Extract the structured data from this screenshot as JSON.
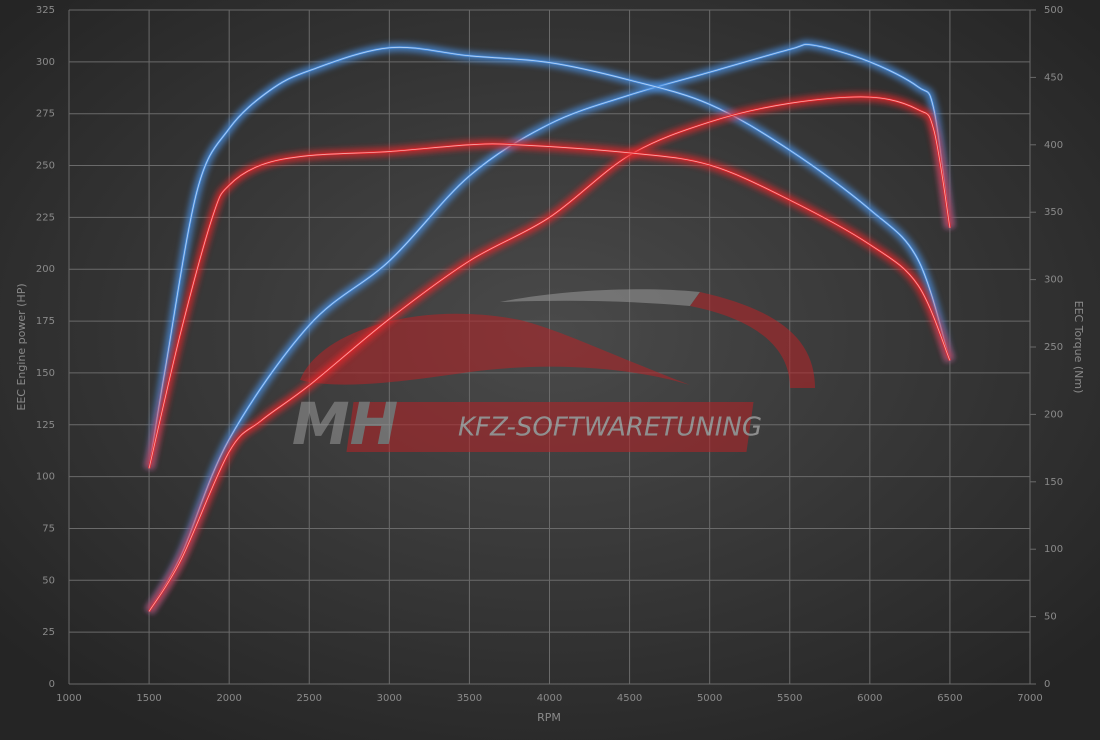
{
  "chart_data": {
    "type": "line",
    "xlabel": "RPM",
    "ylabel": "EEC Engine power (HP)",
    "y2label": "EEC Torque (Nm)",
    "watermark": {
      "logo": "MH",
      "text": "KFZ-SOFTWARETUNING"
    },
    "xlim": [
      1000,
      7000
    ],
    "xticks": [
      1000,
      1500,
      2000,
      2500,
      3000,
      3500,
      4000,
      4500,
      5000,
      5500,
      6000,
      6500,
      7000
    ],
    "ylim": [
      0,
      325
    ],
    "yticks": [
      0,
      25,
      50,
      75,
      100,
      125,
      150,
      175,
      200,
      225,
      250,
      275,
      300,
      325
    ],
    "y2lim": [
      0,
      500
    ],
    "y2ticks": [
      0,
      50,
      100,
      150,
      200,
      250,
      300,
      350,
      400,
      450,
      500
    ],
    "grid": true,
    "series": [
      {
        "color": "#4a90e2",
        "axis": "y",
        "x": [
          1500,
          1700,
          2000,
          2500,
          3000,
          3500,
          4000,
          4500,
          5000,
          5500,
          5650,
          6000,
          6300,
          6400,
          6500
        ],
        "values": [
          35,
          62,
          118,
          173,
          204,
          245,
          270,
          284,
          295,
          306,
          308,
          300,
          288,
          277,
          220
        ]
      },
      {
        "color": "#4a90e2",
        "axis": "y2",
        "x": [
          1500,
          1600,
          1800,
          2000,
          2250,
          2500,
          3000,
          3500,
          4000,
          4500,
          5000,
          5500,
          6000,
          6300,
          6500
        ],
        "values": [
          160,
          233,
          366,
          412,
          440,
          455,
          472,
          466,
          461,
          448,
          430,
          396,
          352,
          315,
          240
        ]
      },
      {
        "color": "#e8262a",
        "axis": "y",
        "x": [
          1500,
          1700,
          2000,
          2200,
          2500,
          3000,
          3500,
          4000,
          4500,
          5000,
          5500,
          6000,
          6300,
          6400,
          6500
        ],
        "values": [
          35,
          60,
          112,
          127,
          144,
          176,
          204,
          225,
          255,
          271,
          280,
          283,
          277,
          267,
          220
        ]
      },
      {
        "color": "#e8262a",
        "axis": "y2",
        "x": [
          1500,
          1700,
          1900,
          2000,
          2200,
          2500,
          3000,
          3500,
          3800,
          4500,
          5000,
          5500,
          6000,
          6300,
          6500
        ],
        "values": [
          160,
          262,
          348,
          370,
          385,
          392,
          395,
          400,
          400,
          394,
          385,
          359,
          326,
          296,
          240
        ]
      }
    ]
  }
}
